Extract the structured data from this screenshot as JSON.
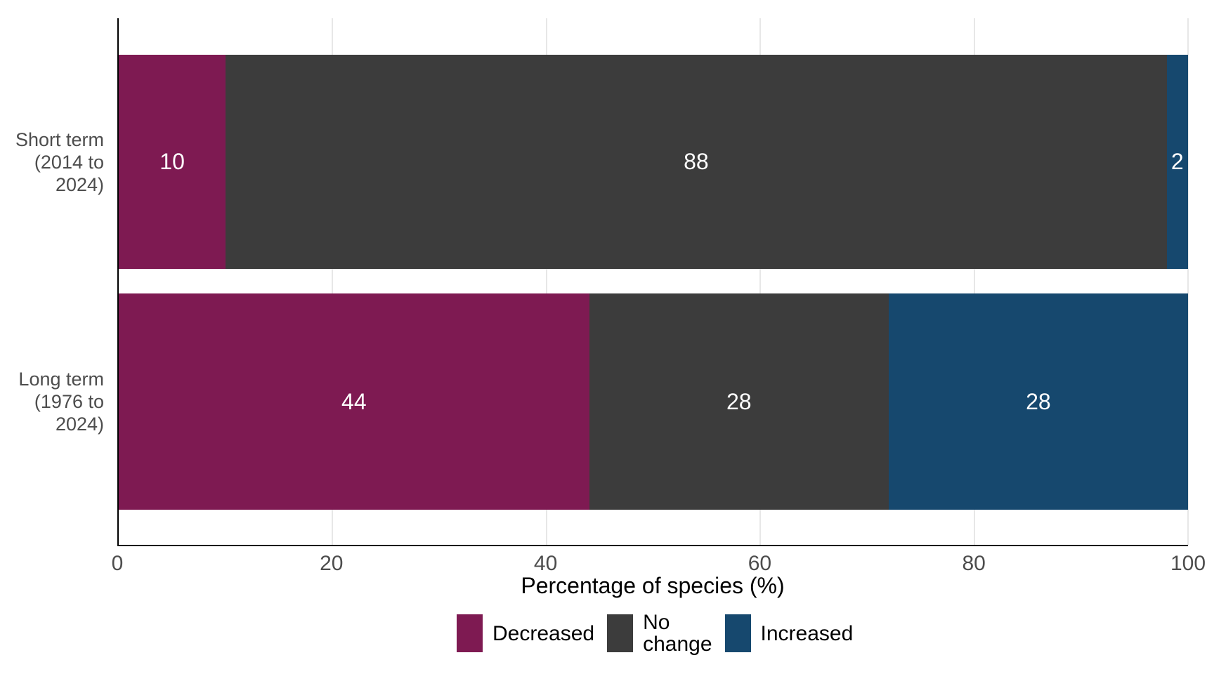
{
  "chart_data": {
    "type": "bar",
    "orientation": "horizontal",
    "stacked": true,
    "xlabel": "Percentage of species (%)",
    "xlim": [
      0,
      100
    ],
    "xticks": [
      0,
      20,
      40,
      60,
      80,
      100
    ],
    "grid": {
      "vertical_major": true,
      "color": "#E7E7E7"
    },
    "axis": {
      "line_color": "#000000",
      "tick_text_color": "#4D4D4D",
      "category_text_color": "#4D4D4D"
    },
    "categories": [
      {
        "id": "short-term",
        "label": "Short term\n(2014 to\n2024)"
      },
      {
        "id": "long-term",
        "label": "Long term\n(1976 to\n2024)"
      }
    ],
    "series": [
      {
        "name": "Decreased",
        "color": "#7E1A52",
        "values": [
          10,
          44
        ]
      },
      {
        "name": "No change",
        "color": "#3C3C3C",
        "values": [
          88,
          28
        ]
      },
      {
        "name": "Increased",
        "color": "#16486E",
        "values": [
          2,
          28
        ]
      }
    ],
    "value_labels": {
      "show": true,
      "color": "#FFFFFF"
    },
    "legend": {
      "position": "bottom",
      "entries": [
        {
          "name": "Decreased",
          "label": "Decreased",
          "color": "#7E1A52"
        },
        {
          "name": "No change",
          "label": "No\nchange",
          "color": "#3C3C3C"
        },
        {
          "name": "Increased",
          "label": "Increased",
          "color": "#16486E"
        }
      ]
    }
  }
}
